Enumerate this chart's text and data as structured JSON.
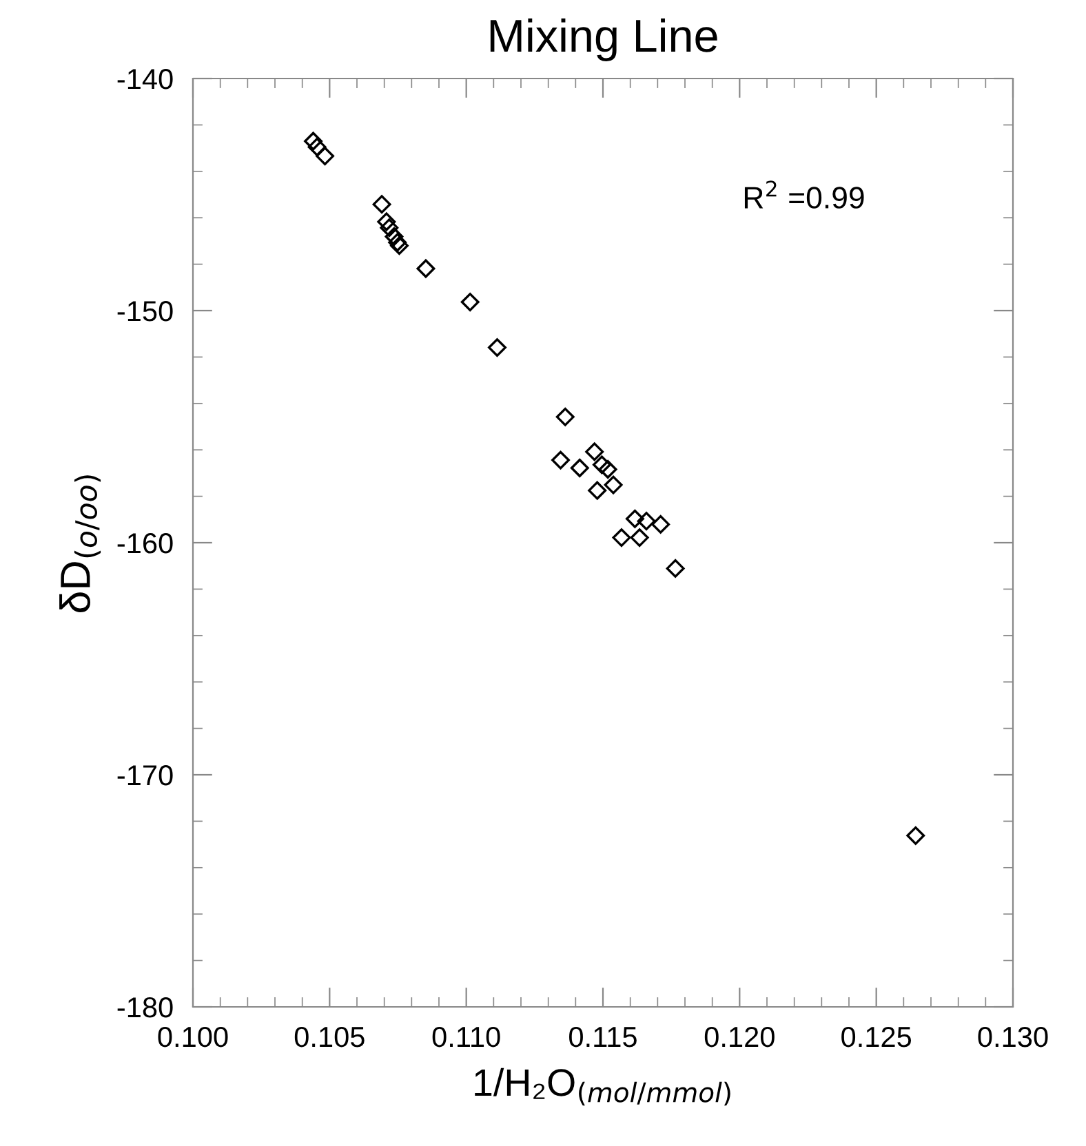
{
  "chart_data": {
    "type": "scatter",
    "title": "Mixing Line",
    "xlabel": "1/H₂O$_{(mol/mmol)}$",
    "ylabel": "δD$_{(o/oo)}$",
    "annotations": [
      "R$^{2}$ =0.99"
    ],
    "x": [
      0.1044,
      0.10454,
      0.10483,
      0.10691,
      0.10708,
      0.10718,
      0.10736,
      0.10748,
      0.10755,
      0.10852,
      0.11014,
      0.11113,
      0.11362,
      0.11345,
      0.11415,
      0.11469,
      0.11496,
      0.11518,
      0.11479,
      0.11538,
      0.11617,
      0.11659,
      0.11711,
      0.11568,
      0.11634,
      0.11765,
      0.12644
    ],
    "series": [
      {
        "color": "#000000",
        "values": [
          -142.7,
          -142.95,
          -143.34,
          -145.42,
          -146.17,
          -146.43,
          -146.81,
          -147.06,
          -147.2,
          -148.19,
          -149.63,
          -151.59,
          -154.58,
          -156.44,
          -156.78,
          -156.08,
          -156.64,
          -156.84,
          -157.75,
          -157.51,
          -158.97,
          -159.07,
          -159.21,
          -159.78,
          -159.78,
          -161.11,
          -172.62
        ]
      }
    ],
    "xlim": [
      0.1,
      0.13
    ],
    "ylim": [
      -180,
      -140
    ],
    "xticks": [
      {
        "value": 0.1,
        "label": "0.100"
      },
      {
        "value": 0.105,
        "label": "0.105"
      },
      {
        "value": 0.11,
        "label": "0.110"
      },
      {
        "value": 0.115,
        "label": "0.115"
      },
      {
        "value": 0.12,
        "label": "0.120"
      },
      {
        "value": 0.125,
        "label": "0.125"
      },
      {
        "value": 0.13,
        "label": "0.130"
      }
    ],
    "yticks": [
      -140,
      -150,
      -160,
      -170,
      -180
    ],
    "marker": "diamond",
    "grid": false,
    "legend": false
  }
}
